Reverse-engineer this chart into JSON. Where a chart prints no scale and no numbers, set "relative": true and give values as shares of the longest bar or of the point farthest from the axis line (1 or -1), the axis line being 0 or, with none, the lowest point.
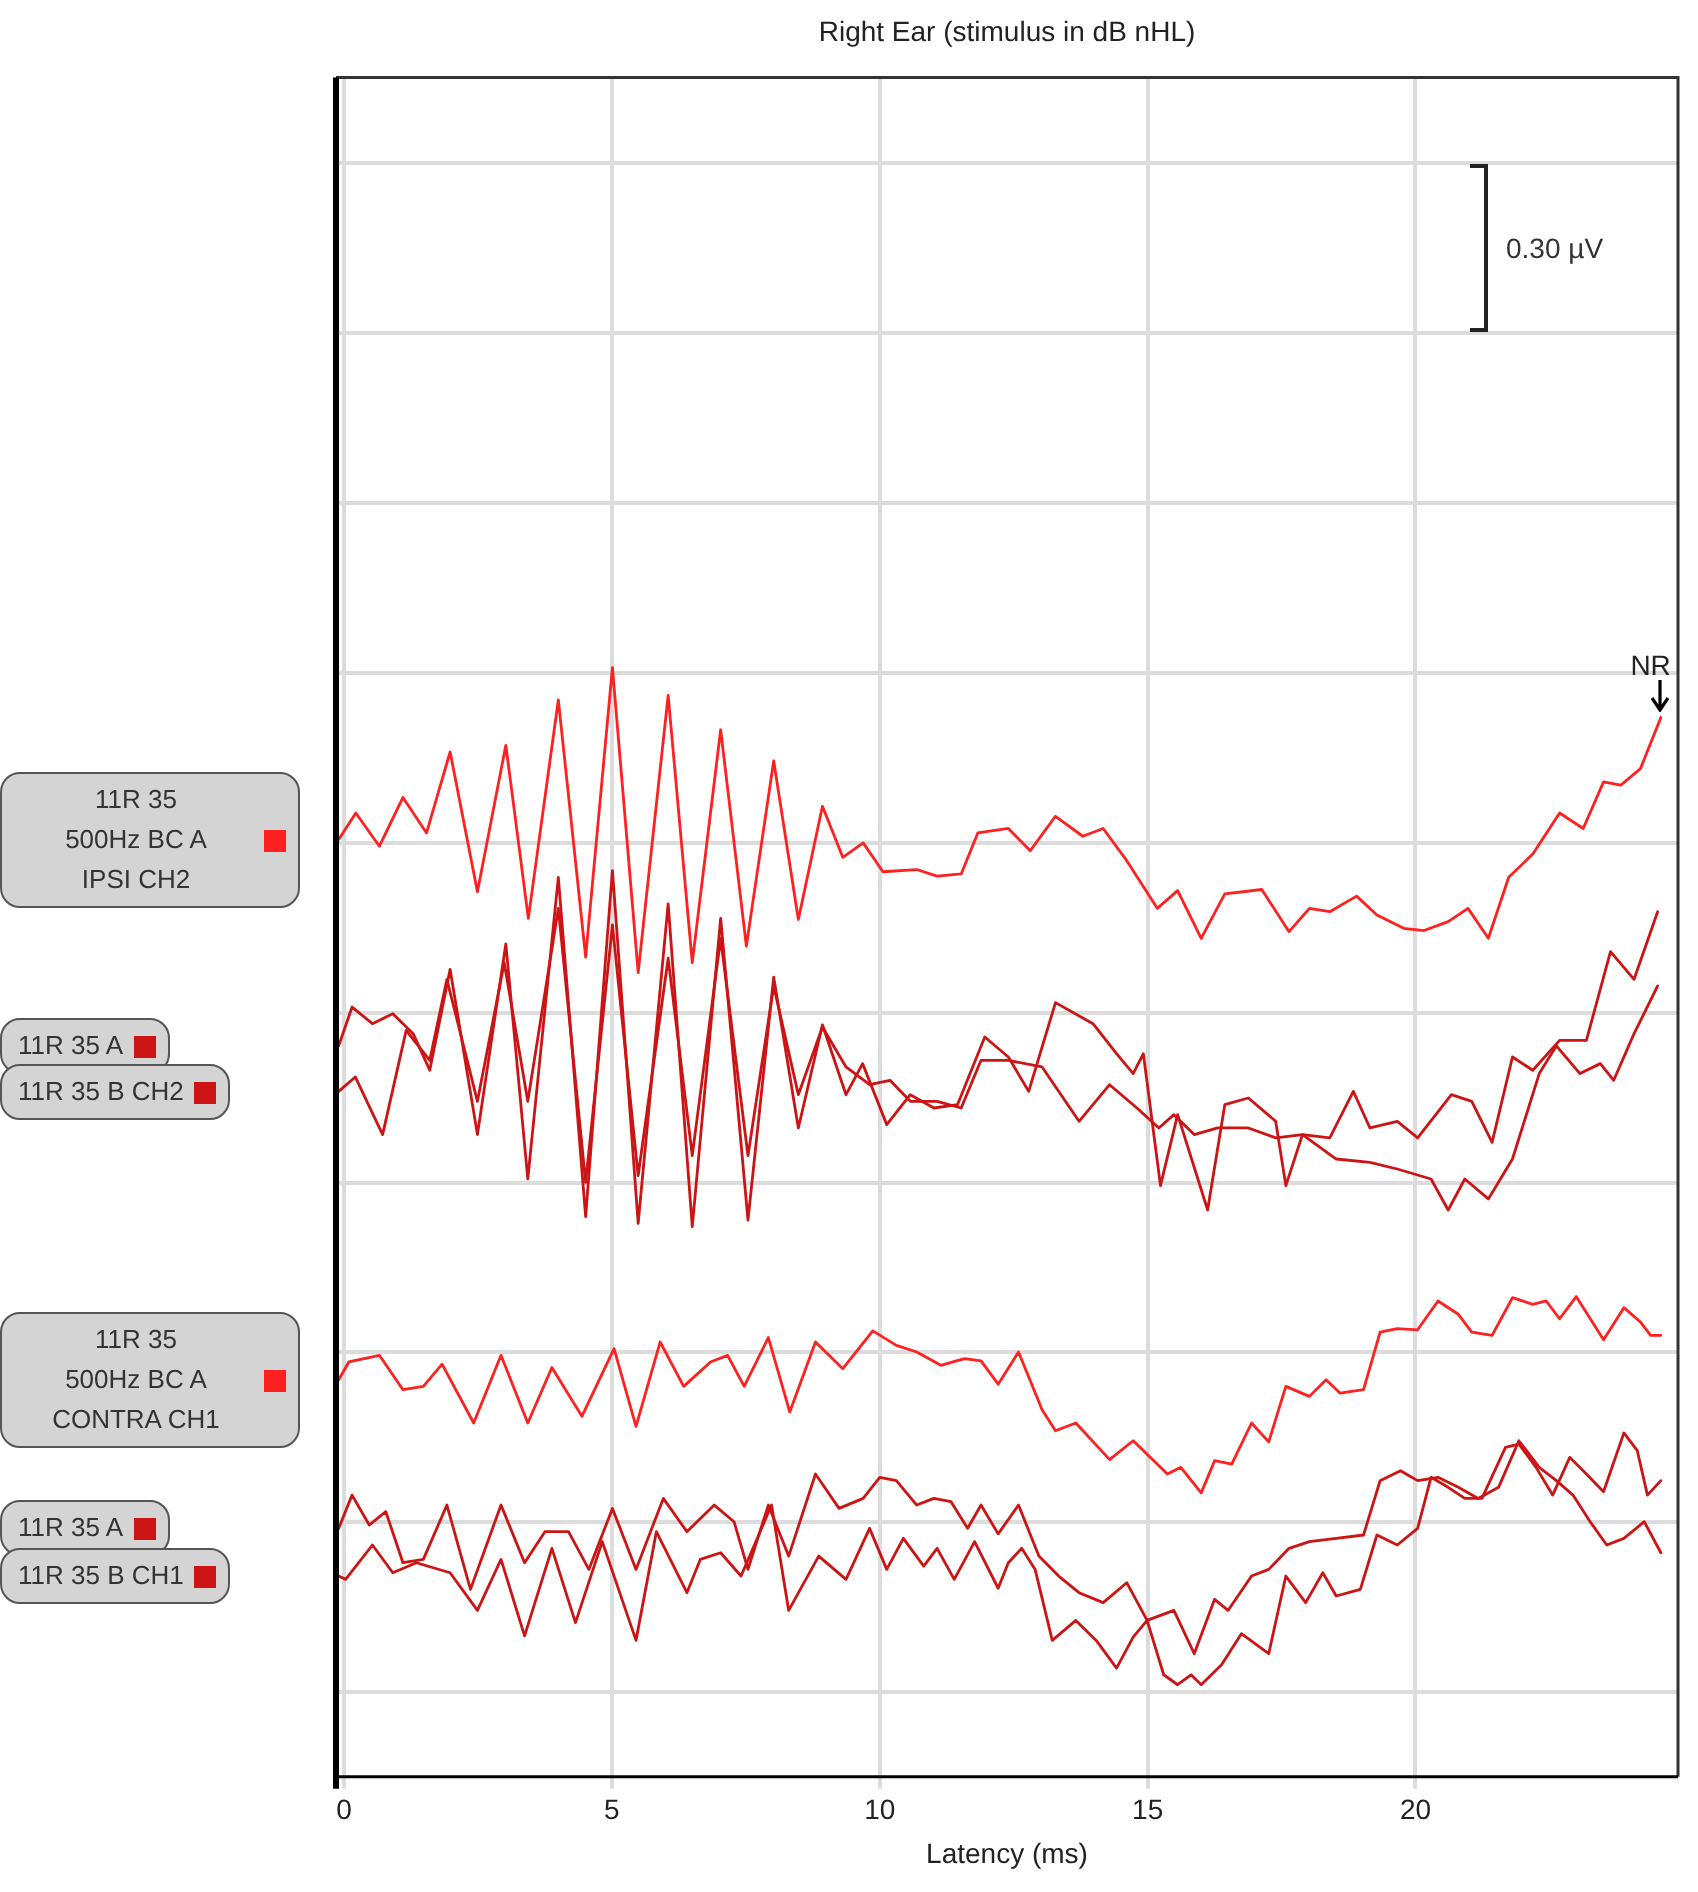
{
  "chart_data": {
    "type": "line",
    "title": "Right Ear (stimulus in dB nHL)",
    "xlabel": "Latency (ms)",
    "relative": true,
    "marker": "none",
    "grid": true,
    "legend": "left",
    "xlim": [
      -0.15,
      24.9
    ],
    "xticks": [
      0,
      5,
      10,
      15,
      20
    ],
    "series": [
      {
        "name": "11R 35\n500Hz BC A\nIPSI CH2",
        "color": "#ff2020",
        "x": [
          -0.1,
          0.22,
          0.66,
          1.1,
          1.54,
          1.98,
          2.49,
          3.02,
          3.44,
          4.0,
          4.51,
          5.01,
          5.49,
          6.05,
          6.5,
          7.03,
          7.51,
          8.02,
          8.48,
          8.93,
          9.31,
          9.69,
          10.06,
          10.69,
          11.07,
          11.52,
          11.83,
          12.4,
          12.81,
          13.28,
          13.79,
          14.17,
          14.61,
          15.18,
          15.56,
          16.0,
          16.44,
          17.13,
          17.64,
          18.02,
          18.4,
          18.9,
          19.28,
          19.78,
          20.16,
          20.61,
          20.98,
          21.36,
          21.74,
          22.19,
          22.69,
          23.13,
          23.51,
          23.83,
          24.2,
          24.58
        ],
        "values": [
          0.845,
          0.869,
          0.839,
          0.883,
          0.851,
          0.924,
          0.798,
          0.93,
          0.774,
          0.971,
          0.739,
          1,
          0.725,
          0.975,
          0.734,
          0.944,
          0.749,
          0.916,
          0.773,
          0.875,
          0.829,
          0.842,
          0.816,
          0.818,
          0.812,
          0.814,
          0.851,
          0.855,
          0.835,
          0.866,
          0.848,
          0.855,
          0.826,
          0.783,
          0.799,
          0.756,
          0.796,
          0.8,
          0.762,
          0.783,
          0.78,
          0.794,
          0.777,
          0.765,
          0.763,
          0.771,
          0.783,
          0.756,
          0.811,
          0.832,
          0.869,
          0.855,
          0.897,
          0.894,
          0.909,
          0.955
        ]
      },
      {
        "name": "11R 35 A",
        "color": "#cc1414",
        "x": [
          -0.1,
          0.15,
          0.53,
          0.91,
          1.29,
          1.6,
          1.98,
          2.49,
          3.02,
          3.43,
          4.0,
          4.51,
          5.01,
          5.49,
          6.05,
          6.5,
          7.03,
          7.54,
          8.02,
          8.48,
          8.93,
          9.37,
          9.68,
          10.13,
          10.57,
          11.01,
          11.45,
          11.96,
          12.4,
          12.78,
          13.28,
          13.98,
          14.42,
          14.73,
          14.92,
          15.24,
          15.56,
          16.12,
          16.44,
          16.88,
          17.39,
          17.58,
          17.89,
          18.4,
          18.84,
          19.15,
          19.66,
          20.04,
          20.67,
          21.05,
          21.43,
          21.81,
          22.19,
          22.69,
          23.19,
          23.64,
          24.08,
          24.52
        ],
        "values": [
          0.659,
          0.694,
          0.679,
          0.688,
          0.67,
          0.637,
          0.728,
          0.579,
          0.751,
          0.539,
          0.811,
          0.505,
          0.817,
          0.499,
          0.787,
          0.496,
          0.774,
          0.502,
          0.721,
          0.585,
          0.678,
          0.615,
          0.643,
          0.588,
          0.615,
          0.603,
          0.606,
          0.667,
          0.649,
          0.618,
          0.698,
          0.679,
          0.652,
          0.634,
          0.652,
          0.533,
          0.597,
          0.511,
          0.606,
          0.612,
          0.591,
          0.533,
          0.579,
          0.576,
          0.618,
          0.585,
          0.591,
          0.576,
          0.615,
          0.609,
          0.572,
          0.649,
          0.637,
          0.664,
          0.664,
          0.744,
          0.719,
          0.78
        ]
      },
      {
        "name": "11R 35 B CH2",
        "color": "#cc1414",
        "x": [
          -0.1,
          0.21,
          0.72,
          1.16,
          1.6,
          1.92,
          2.49,
          2.99,
          3.43,
          4.0,
          4.51,
          5.01,
          5.49,
          6.05,
          6.5,
          7.03,
          7.54,
          8.02,
          8.48,
          8.93,
          9.37,
          9.81,
          10.19,
          10.57,
          11.07,
          11.52,
          11.89,
          12.4,
          13.03,
          13.72,
          14.29,
          14.8,
          15.21,
          15.49,
          15.87,
          16.31,
          16.88,
          17.39,
          17.89,
          18.52,
          19.15,
          19.66,
          20.29,
          20.61,
          20.92,
          21.36,
          21.81,
          22.31,
          22.63,
          23.07,
          23.45,
          23.7,
          24.08,
          24.52
        ],
        "values": [
          0.618,
          0.631,
          0.579,
          0.673,
          0.646,
          0.719,
          0.609,
          0.734,
          0.609,
          0.783,
          0.536,
          0.768,
          0.542,
          0.738,
          0.56,
          0.756,
          0.56,
          0.713,
          0.615,
          0.676,
          0.64,
          0.624,
          0.628,
          0.609,
          0.609,
          0.603,
          0.646,
          0.646,
          0.64,
          0.591,
          0.624,
          0.603,
          0.585,
          0.597,
          0.579,
          0.585,
          0.585,
          0.576,
          0.579,
          0.557,
          0.554,
          0.548,
          0.539,
          0.511,
          0.539,
          0.521,
          0.557,
          0.634,
          0.659,
          0.634,
          0.643,
          0.628,
          0.67,
          0.713
        ]
      },
      {
        "name": "11R 35\n500Hz BC A\nCONTRA CH1",
        "color": "#ff2020",
        "x": [
          -0.1,
          0.09,
          0.66,
          1.1,
          1.48,
          1.83,
          2.42,
          2.93,
          3.43,
          3.88,
          4.44,
          5.04,
          5.45,
          5.9,
          6.34,
          6.84,
          7.16,
          7.47,
          7.92,
          8.32,
          8.8,
          9.31,
          9.87,
          10.31,
          10.69,
          11.14,
          11.58,
          11.89,
          12.21,
          12.59,
          13.03,
          13.28,
          13.66,
          14.29,
          14.73,
          15.37,
          15.62,
          16.0,
          16.25,
          16.57,
          16.94,
          17.26,
          17.58,
          18.02,
          18.33,
          18.59,
          19.03,
          19.34,
          19.66,
          20.04,
          20.42,
          20.8,
          21.05,
          21.43,
          21.81,
          22.19,
          22.44,
          22.69,
          23.0,
          23.51,
          23.89,
          24.2,
          24.39,
          24.58
        ],
        "values": [
          0.358,
          0.374,
          0.38,
          0.349,
          0.352,
          0.372,
          0.319,
          0.38,
          0.319,
          0.369,
          0.325,
          0.386,
          0.316,
          0.392,
          0.352,
          0.374,
          0.38,
          0.352,
          0.396,
          0.329,
          0.392,
          0.368,
          0.402,
          0.389,
          0.383,
          0.371,
          0.377,
          0.375,
          0.354,
          0.383,
          0.331,
          0.312,
          0.319,
          0.286,
          0.303,
          0.273,
          0.279,
          0.256,
          0.285,
          0.282,
          0.319,
          0.302,
          0.352,
          0.343,
          0.358,
          0.346,
          0.349,
          0.401,
          0.404,
          0.403,
          0.429,
          0.417,
          0.401,
          0.398,
          0.432,
          0.426,
          0.429,
          0.413,
          0.433,
          0.394,
          0.423,
          0.41,
          0.398,
          0.398
        ]
      },
      {
        "name": "11R 35 A",
        "color": "#cc1414",
        "x": [
          -0.1,
          0.15,
          0.47,
          0.78,
          1.1,
          1.48,
          1.92,
          2.36,
          2.93,
          3.37,
          3.75,
          4.19,
          4.57,
          5.01,
          5.45,
          5.96,
          6.4,
          6.91,
          7.28,
          7.54,
          7.92,
          8.3,
          8.8,
          9.24,
          9.69,
          10.0,
          10.31,
          10.69,
          11.01,
          11.33,
          11.64,
          11.89,
          12.21,
          12.59,
          12.97,
          13.34,
          13.72,
          14.17,
          14.61,
          14.99,
          15.49,
          15.87,
          16.25,
          16.5,
          16.94,
          17.26,
          17.64,
          18.02,
          18.52,
          19.03,
          19.34,
          19.72,
          20.04,
          20.42,
          20.8,
          21.17,
          21.55,
          21.93,
          22.31,
          22.63,
          22.94,
          23.26,
          23.57,
          23.89,
          24.27,
          24.58
        ],
        "values": [
          0.224,
          0.254,
          0.227,
          0.239,
          0.193,
          0.196,
          0.245,
          0.169,
          0.245,
          0.193,
          0.221,
          0.221,
          0.187,
          0.242,
          0.187,
          0.251,
          0.221,
          0.245,
          0.23,
          0.187,
          0.245,
          0.199,
          0.273,
          0.242,
          0.251,
          0.27,
          0.267,
          0.245,
          0.251,
          0.248,
          0.224,
          0.245,
          0.219,
          0.245,
          0.199,
          0.181,
          0.166,
          0.157,
          0.175,
          0.141,
          0.15,
          0.111,
          0.16,
          0.15,
          0.181,
          0.187,
          0.206,
          0.212,
          0.215,
          0.218,
          0.267,
          0.276,
          0.267,
          0.27,
          0.261,
          0.251,
          0.261,
          0.303,
          0.279,
          0.267,
          0.254,
          0.23,
          0.209,
          0.215,
          0.23,
          0.202
        ]
      },
      {
        "name": "11R 35 B CH1",
        "color": "#cc1414",
        "x": [
          -0.1,
          0.03,
          0.53,
          0.91,
          1.35,
          1.98,
          2.49,
          2.93,
          3.37,
          3.88,
          4.32,
          4.82,
          5.45,
          5.83,
          6.4,
          6.65,
          7.03,
          7.41,
          7.66,
          7.98,
          8.3,
          8.86,
          9.37,
          9.81,
          10.13,
          10.44,
          10.82,
          11.07,
          11.39,
          11.77,
          12.21,
          12.4,
          12.65,
          12.9,
          13.22,
          13.66,
          14.04,
          14.42,
          14.73,
          14.99,
          15.3,
          15.56,
          15.81,
          16.0,
          16.38,
          16.75,
          17.26,
          17.58,
          17.95,
          18.27,
          18.52,
          18.97,
          19.28,
          19.66,
          20.04,
          20.29,
          20.61,
          20.92,
          21.24,
          21.68,
          21.93,
          22.25,
          22.56,
          22.88,
          23.19,
          23.51,
          23.89,
          24.14,
          24.33,
          24.58
        ],
        "values": [
          0.181,
          0.178,
          0.209,
          0.184,
          0.193,
          0.184,
          0.15,
          0.196,
          0.127,
          0.206,
          0.139,
          0.212,
          0.123,
          0.221,
          0.166,
          0.196,
          0.202,
          0.181,
          0.209,
          0.245,
          0.15,
          0.199,
          0.178,
          0.224,
          0.187,
          0.215,
          0.19,
          0.206,
          0.178,
          0.212,
          0.17,
          0.193,
          0.206,
          0.187,
          0.123,
          0.141,
          0.123,
          0.098,
          0.126,
          0.141,
          0.092,
          0.083,
          0.092,
          0.083,
          0.101,
          0.129,
          0.111,
          0.181,
          0.157,
          0.184,
          0.163,
          0.169,
          0.218,
          0.209,
          0.224,
          0.27,
          0.261,
          0.251,
          0.251,
          0.297,
          0.3,
          0.279,
          0.254,
          0.288,
          0.273,
          0.257,
          0.31,
          0.294,
          0.254,
          0.267
        ]
      }
    ],
    "annotations": [
      "0.30 µV",
      {
        "text": "NR",
        "x": 24.58,
        "y": 0.955
      }
    ]
  }
}
